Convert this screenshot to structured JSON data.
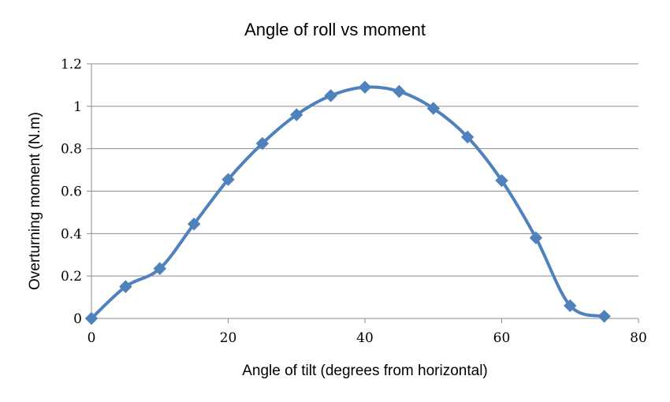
{
  "chart_data": {
    "type": "line",
    "title": "Angle of roll vs moment",
    "xlabel": "Angle of tilt (degrees from horizontal)",
    "ylabel": "Overturning moment (N.m)",
    "xlim": [
      0,
      80
    ],
    "ylim": [
      0,
      1.2
    ],
    "xticks": [
      "0",
      "20",
      "40",
      "60",
      "80"
    ],
    "yticks": [
      "0",
      "0.2",
      "0.4",
      "0.6",
      "0.8",
      "1",
      "1.2"
    ],
    "grid": "horizontal",
    "legend": "none",
    "smooth": true,
    "marker": "diamond",
    "color": "#4f81bd",
    "series": [
      {
        "x": [
          0,
          5,
          10,
          15,
          20,
          25,
          30,
          35,
          40,
          45,
          50,
          55,
          60,
          65,
          70,
          75
        ],
        "values": [
          0,
          0.15,
          0.235,
          0.445,
          0.655,
          0.825,
          0.96,
          1.05,
          1.09,
          1.07,
          0.99,
          0.855,
          0.65,
          0.38,
          0.06,
          0.01
        ]
      }
    ]
  }
}
